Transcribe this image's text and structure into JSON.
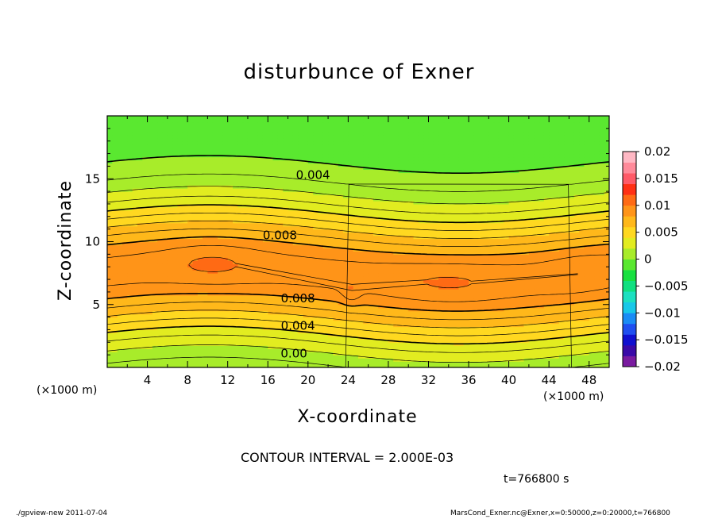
{
  "chart_data": {
    "type": "heatmap",
    "title": "disturbunce of Exner",
    "xlabel": "X-coordinate",
    "ylabel": "Z-coordinate",
    "x_unit": "(×1000 m)",
    "x_unit_right": "(×1000 m)",
    "xlim": [
      0,
      50
    ],
    "ylim": [
      0,
      20
    ],
    "xticks": [
      4,
      8,
      12,
      16,
      20,
      24,
      28,
      32,
      36,
      40,
      44,
      48
    ],
    "yticks": [
      5,
      10,
      15
    ],
    "colorbar": {
      "ticks": [
        0.02,
        0.015,
        0.01,
        0.005,
        0,
        -0.005,
        -0.01,
        -0.015,
        -0.02
      ],
      "tick_labels": [
        "0.02",
        "0.015",
        "0.01",
        "0.005",
        "0",
        "−0.005",
        "−0.01",
        "−0.015",
        "−0.02"
      ],
      "range": [
        -0.02,
        0.02
      ],
      "colors": [
        "#7a1ba0",
        "#3a0aa8",
        "#1010d0",
        "#1f4ff0",
        "#1a8cf5",
        "#18c8e8",
        "#1ce0c0",
        "#10e080",
        "#18e040",
        "#5ae830",
        "#a8ec2a",
        "#e2ec20",
        "#ffd820",
        "#ffb81a",
        "#ff9418",
        "#ff6a14",
        "#ff3014",
        "#ff5a68",
        "#ff8a9a",
        "#ffb8c4"
      ]
    },
    "contour_labels": [
      {
        "text": "0.004",
        "x": 20.5,
        "z": 15.3
      },
      {
        "text": "0.008",
        "x": 17.2,
        "z": 10.5
      },
      {
        "text": "0.008",
        "x": 19.0,
        "z": 5.5
      },
      {
        "text": "0.004",
        "x": 19.0,
        "z": 3.3
      },
      {
        "text": "0.00",
        "x": 18.6,
        "z": 1.1
      }
    ],
    "contour_interval": 0.002
  },
  "annotations": {
    "contour_interval_text": "CONTOUR INTERVAL = 2.000E-03",
    "time_text": "t=766800 s",
    "footer_left": "./gpview-new   2011-07-04",
    "footer_right": "MarsCond_Exner.nc@Exner,x=0:50000,z=0:20000,t=766800"
  }
}
